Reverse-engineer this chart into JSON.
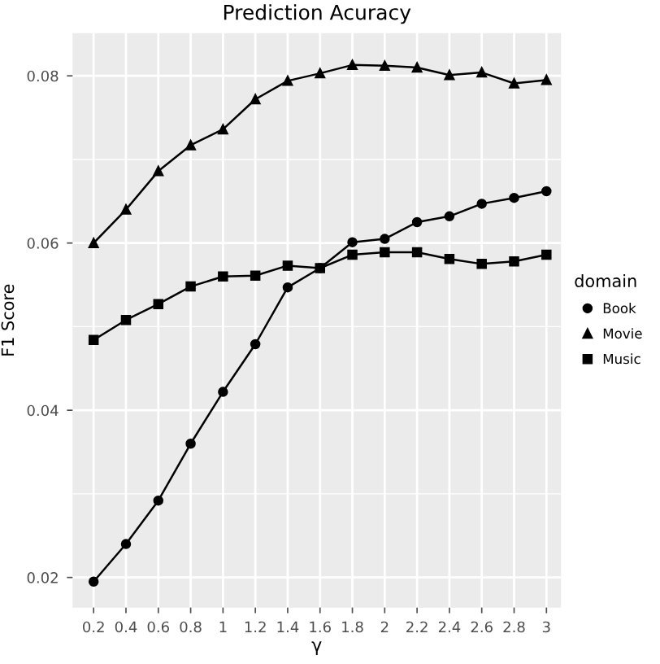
{
  "chart_data": {
    "type": "line",
    "title": "Prediction Acuracy",
    "xlabel": "γ",
    "ylabel": "F1 Score",
    "legend_title": "domain",
    "x": [
      0.2,
      0.4,
      0.6,
      0.8,
      1,
      1.2,
      1.4,
      1.6,
      1.8,
      2,
      2.2,
      2.4,
      2.6,
      2.8,
      3
    ],
    "series": [
      {
        "name": "Book",
        "color": "#000000",
        "marker": "circle",
        "values": [
          0.0195,
          0.024,
          0.0292,
          0.036,
          0.0422,
          0.0479,
          0.0547,
          0.057,
          0.0601,
          0.0605,
          0.0625,
          0.0632,
          0.0647,
          0.0654,
          0.0662
        ]
      },
      {
        "name": "Movie",
        "color": "#000000",
        "marker": "triangle",
        "values": [
          0.06,
          0.064,
          0.0686,
          0.0717,
          0.0736,
          0.0772,
          0.0794,
          0.0803,
          0.0813,
          0.0812,
          0.081,
          0.0801,
          0.0804,
          0.0791,
          0.0795
        ]
      },
      {
        "name": "Music",
        "color": "#000000",
        "marker": "square",
        "values": [
          0.0484,
          0.0508,
          0.0527,
          0.0548,
          0.056,
          0.0561,
          0.0573,
          0.057,
          0.0586,
          0.0589,
          0.0589,
          0.0581,
          0.0575,
          0.0578,
          0.0586
        ]
      }
    ],
    "xlim": [
      0.07,
      3.09
    ],
    "ylim": [
      0.0164,
      0.0851
    ],
    "xticks": [
      0.2,
      0.4,
      0.6,
      0.8,
      1,
      1.2,
      1.4,
      1.6,
      1.8,
      2,
      2.2,
      2.4,
      2.6,
      2.8,
      3
    ],
    "yticks": [
      0.02,
      0.04,
      0.06,
      0.08
    ],
    "grid": true,
    "legend": "right",
    "line_style": "solid"
  }
}
